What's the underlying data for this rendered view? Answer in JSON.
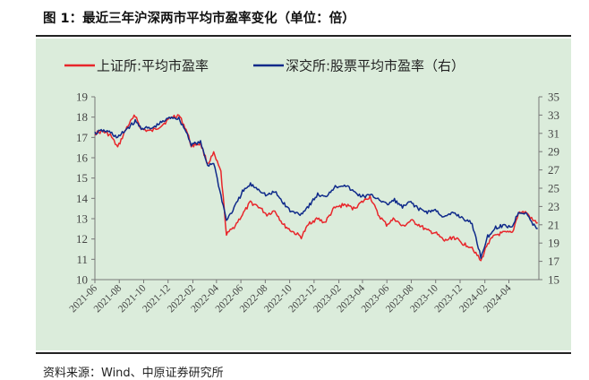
{
  "title": "图 1：最近三年沪深两市平均市盈率变化（单位：倍）",
  "source": "资料来源：Wind、中原证券研究所",
  "chart_data": {
    "type": "line",
    "legend_position": "top",
    "grid": false,
    "x_tick_labels": [
      "2021-06",
      "2021-08",
      "2021-10",
      "2021-12",
      "2022-02",
      "2022-04",
      "2022-06",
      "2022-08",
      "2022-10",
      "2022-12",
      "2023-02",
      "2023-04",
      "2023-06",
      "2023-08",
      "2023-10",
      "2023-12",
      "2024-02",
      "2024-04"
    ],
    "x_range": [
      "2021-06-01",
      "2024-06-15"
    ],
    "y_left": {
      "range": [
        10,
        19
      ],
      "ticks": [
        10,
        11,
        12,
        13,
        14,
        15,
        16,
        17,
        18,
        19
      ]
    },
    "y_right": {
      "range": [
        15,
        35
      ],
      "ticks": [
        15,
        17,
        19,
        21,
        23,
        25,
        27,
        29,
        31,
        33,
        35
      ]
    },
    "series": [
      {
        "name": "上证所:平均市盈率",
        "axis": "left",
        "color": "#e8262b",
        "points": [
          [
            "2021-06-01",
            17.2
          ],
          [
            "2021-06-20",
            17.3
          ],
          [
            "2021-07-10",
            17.1
          ],
          [
            "2021-07-28",
            16.5
          ],
          [
            "2021-08-20",
            17.5
          ],
          [
            "2021-09-10",
            18.1
          ],
          [
            "2021-09-25",
            17.4
          ],
          [
            "2021-10-20",
            17.3
          ],
          [
            "2021-11-15",
            17.6
          ],
          [
            "2021-12-10",
            18.0
          ],
          [
            "2021-12-28",
            18.1
          ],
          [
            "2022-01-15",
            17.4
          ],
          [
            "2022-01-28",
            16.6
          ],
          [
            "2022-02-20",
            16.7
          ],
          [
            "2022-03-10",
            15.7
          ],
          [
            "2022-03-25",
            16.2
          ],
          [
            "2022-04-12",
            15.3
          ],
          [
            "2022-04-26",
            12.2
          ],
          [
            "2022-05-15",
            12.6
          ],
          [
            "2022-06-05",
            13.2
          ],
          [
            "2022-06-25",
            13.8
          ],
          [
            "2022-07-15",
            13.6
          ],
          [
            "2022-08-05",
            13.2
          ],
          [
            "2022-08-25",
            13.4
          ],
          [
            "2022-09-15",
            12.7
          ],
          [
            "2022-10-05",
            12.4
          ],
          [
            "2022-10-30",
            12.1
          ],
          [
            "2022-11-20",
            12.8
          ],
          [
            "2022-12-10",
            13.0
          ],
          [
            "2022-12-28",
            12.8
          ],
          [
            "2023-01-20",
            13.5
          ],
          [
            "2023-02-15",
            13.7
          ],
          [
            "2023-03-10",
            13.5
          ],
          [
            "2023-03-30",
            13.8
          ],
          [
            "2023-04-20",
            14.1
          ],
          [
            "2023-05-10",
            13.2
          ],
          [
            "2023-05-31",
            12.7
          ],
          [
            "2023-06-20",
            13.0
          ],
          [
            "2023-07-10",
            12.6
          ],
          [
            "2023-07-31",
            12.9
          ],
          [
            "2023-08-20",
            12.7
          ],
          [
            "2023-09-10",
            12.4
          ],
          [
            "2023-09-30",
            12.3
          ],
          [
            "2023-10-23",
            11.9
          ],
          [
            "2023-11-15",
            12.1
          ],
          [
            "2023-12-05",
            11.8
          ],
          [
            "2023-12-31",
            11.6
          ],
          [
            "2024-01-22",
            10.9
          ],
          [
            "2024-02-08",
            11.8
          ],
          [
            "2024-02-28",
            12.2
          ],
          [
            "2024-03-20",
            12.3
          ],
          [
            "2024-04-10",
            12.3
          ],
          [
            "2024-04-25",
            13.3
          ],
          [
            "2024-05-15",
            13.3
          ],
          [
            "2024-05-31",
            12.9
          ],
          [
            "2024-06-12",
            12.8
          ]
        ]
      },
      {
        "name": "深交所:股票平均市盈率（右）",
        "axis": "right",
        "color": "#0f2a8a",
        "points": [
          [
            "2021-06-01",
            31.0
          ],
          [
            "2021-06-20",
            31.3
          ],
          [
            "2021-07-10",
            31.1
          ],
          [
            "2021-07-28",
            30.5
          ],
          [
            "2021-08-20",
            31.5
          ],
          [
            "2021-09-10",
            32.3
          ],
          [
            "2021-09-25",
            31.6
          ],
          [
            "2021-10-20",
            31.5
          ],
          [
            "2021-11-15",
            32.2
          ],
          [
            "2021-12-10",
            32.8
          ],
          [
            "2021-12-28",
            32.6
          ],
          [
            "2022-01-15",
            31.2
          ],
          [
            "2022-01-28",
            29.8
          ],
          [
            "2022-02-20",
            30.0
          ],
          [
            "2022-03-10",
            27.5
          ],
          [
            "2022-03-25",
            27.8
          ],
          [
            "2022-04-12",
            24.2
          ],
          [
            "2022-04-26",
            21.5
          ],
          [
            "2022-05-15",
            22.8
          ],
          [
            "2022-06-05",
            24.6
          ],
          [
            "2022-06-25",
            25.4
          ],
          [
            "2022-07-15",
            24.9
          ],
          [
            "2022-08-05",
            24.2
          ],
          [
            "2022-08-25",
            24.6
          ],
          [
            "2022-09-15",
            23.4
          ],
          [
            "2022-10-05",
            22.4
          ],
          [
            "2022-10-30",
            22.2
          ],
          [
            "2022-11-20",
            23.2
          ],
          [
            "2022-12-10",
            24.3
          ],
          [
            "2022-12-28",
            24.0
          ],
          [
            "2023-01-20",
            25.1
          ],
          [
            "2023-02-15",
            25.4
          ],
          [
            "2023-03-10",
            24.6
          ],
          [
            "2023-03-30",
            24.1
          ],
          [
            "2023-04-20",
            24.2
          ],
          [
            "2023-05-10",
            23.9
          ],
          [
            "2023-05-31",
            23.2
          ],
          [
            "2023-06-20",
            23.7
          ],
          [
            "2023-07-10",
            22.9
          ],
          [
            "2023-07-31",
            23.5
          ],
          [
            "2023-08-20",
            22.7
          ],
          [
            "2023-09-10",
            22.4
          ],
          [
            "2023-09-30",
            22.6
          ],
          [
            "2023-10-23",
            21.8
          ],
          [
            "2023-11-15",
            22.3
          ],
          [
            "2023-12-05",
            21.8
          ],
          [
            "2023-12-31",
            21.1
          ],
          [
            "2024-01-22",
            17.5
          ],
          [
            "2024-02-08",
            19.7
          ],
          [
            "2024-02-28",
            20.7
          ],
          [
            "2024-03-20",
            20.9
          ],
          [
            "2024-04-10",
            20.8
          ],
          [
            "2024-04-25",
            22.4
          ],
          [
            "2024-05-15",
            22.3
          ],
          [
            "2024-05-31",
            21.0
          ],
          [
            "2024-06-12",
            20.6
          ]
        ]
      }
    ]
  },
  "colors": {
    "background": "#dbecdb",
    "axis": "#777777",
    "text": "#444444"
  }
}
